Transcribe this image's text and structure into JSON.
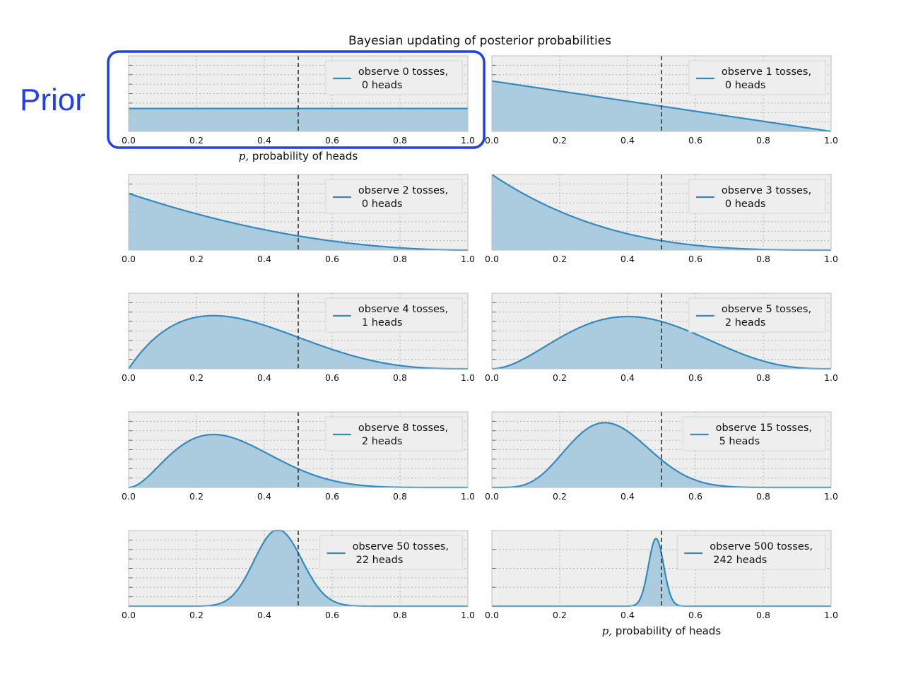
{
  "annotation": {
    "text": "Prior",
    "color": "#1f3ff0"
  },
  "chart_data": {
    "type": "area",
    "title": "Bayesian updating of posterior probabilities",
    "xlabel": "p, probability of heads",
    "xlim": [
      0.0,
      1.0
    ],
    "xticks": [
      "0.0",
      "0.2",
      "0.4",
      "0.6",
      "0.8",
      "1.0"
    ],
    "reference_line_x": 0.5,
    "grid": true,
    "legend_placement": "upper right",
    "line_color": "#348abd",
    "fill_color": "#a6c8dd",
    "axes_background": "#eeeeee",
    "panels": [
      {
        "legend_line1": "observe 0 tosses,",
        "legend_line2": "0 heads",
        "tosses": 0,
        "heads": 0,
        "ymax": 3.3,
        "show_xlabel": true
      },
      {
        "legend_line1": "observe 1 tosses,",
        "legend_line2": "0 heads",
        "tosses": 1,
        "heads": 0,
        "ymax": 3.0,
        "show_xlabel": false
      },
      {
        "legend_line1": "observe 2 tosses,",
        "legend_line2": "0 heads",
        "tosses": 2,
        "heads": 0,
        "ymax": 4.0,
        "show_xlabel": false
      },
      {
        "legend_line1": "observe 3 tosses,",
        "legend_line2": "0 heads",
        "tosses": 3,
        "heads": 0,
        "ymax": 4.0,
        "show_xlabel": false
      },
      {
        "legend_line1": "observe 4 tosses,",
        "legend_line2": "1 heads",
        "tosses": 4,
        "heads": 1,
        "ymax": 3.0,
        "show_xlabel": false
      },
      {
        "legend_line1": "observe 5 tosses,",
        "legend_line2": "2 heads",
        "tosses": 5,
        "heads": 2,
        "ymax": 3.0,
        "show_xlabel": false
      },
      {
        "legend_line1": "observe 8 tosses,",
        "legend_line2": "2 heads",
        "tosses": 8,
        "heads": 2,
        "ymax": 4.0,
        "show_xlabel": false
      },
      {
        "legend_line1": "observe 15 tosses,",
        "legend_line2": "5 heads",
        "tosses": 15,
        "heads": 5,
        "ymax": 4.0,
        "show_xlabel": false
      },
      {
        "legend_line1": "observe 50 tosses,",
        "legend_line2": "22 heads",
        "tosses": 50,
        "heads": 22,
        "ymax": 5.7,
        "show_xlabel": false
      },
      {
        "legend_line1": "observe 500 tosses,",
        "legend_line2": "242 heads",
        "tosses": 500,
        "heads": 242,
        "ymax": 20.0,
        "show_xlabel": true
      }
    ]
  }
}
